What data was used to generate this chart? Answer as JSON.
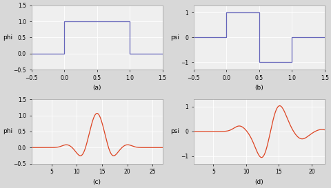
{
  "fig_size": [
    4.81,
    2.73
  ],
  "dpi": 100,
  "blue_color": "#6666bb",
  "orange_color": "#dd4422",
  "background_color": "#d8d8d8",
  "axes_bg": "#efefef",
  "subplot_labels": [
    "(a)",
    "(b)",
    "(c)",
    "(d)"
  ],
  "ylabel_a": "phi",
  "ylabel_b": "psi",
  "ylabel_c": "phi",
  "ylabel_d": "psi",
  "xlim_ab": [
    -0.5,
    1.5
  ],
  "ylim_a": [
    -0.5,
    1.5
  ],
  "ylim_b": [
    -1.3,
    1.3
  ],
  "xlim_c": [
    1,
    27
  ],
  "ylim_c": [
    -0.5,
    1.5
  ],
  "xlim_d": [
    2,
    22
  ],
  "ylim_d": [
    -1.3,
    1.3
  ],
  "xticks_ab": [
    -0.5,
    0,
    0.5,
    1,
    1.5
  ],
  "yticks_a": [
    -0.5,
    0,
    0.5,
    1,
    1.5
  ],
  "yticks_b": [
    -1,
    0,
    1
  ],
  "xticks_c": [
    5,
    10,
    15,
    20,
    25
  ],
  "yticks_c": [
    -0.5,
    0,
    0.5,
    1,
    1.5
  ],
  "xticks_d": [
    5,
    10,
    15,
    20
  ],
  "yticks_d": [
    -1,
    0,
    1
  ]
}
